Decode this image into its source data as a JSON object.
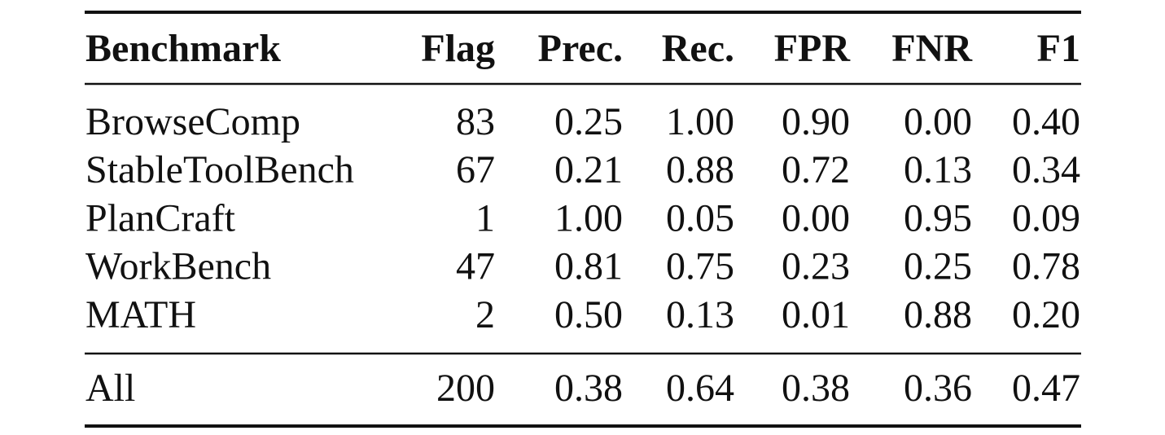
{
  "table": {
    "header": [
      "Benchmark",
      "Flag",
      "Prec.",
      "Rec.",
      "FPR",
      "FNR",
      "F1"
    ],
    "rows": [
      [
        "BrowseComp",
        "83",
        "0.25",
        "1.00",
        "0.90",
        "0.00",
        "0.40"
      ],
      [
        "StableToolBench",
        "67",
        "0.21",
        "0.88",
        "0.72",
        "0.13",
        "0.34"
      ],
      [
        "PlanCraft",
        "1",
        "1.00",
        "0.05",
        "0.00",
        "0.95",
        "0.09"
      ],
      [
        "WorkBench",
        "47",
        "0.81",
        "0.75",
        "0.23",
        "0.25",
        "0.78"
      ],
      [
        "MATH",
        "2",
        "0.50",
        "0.13",
        "0.01",
        "0.88",
        "0.20"
      ]
    ],
    "total": [
      "All",
      "200",
      "0.38",
      "0.64",
      "0.38",
      "0.36",
      "0.47"
    ]
  }
}
